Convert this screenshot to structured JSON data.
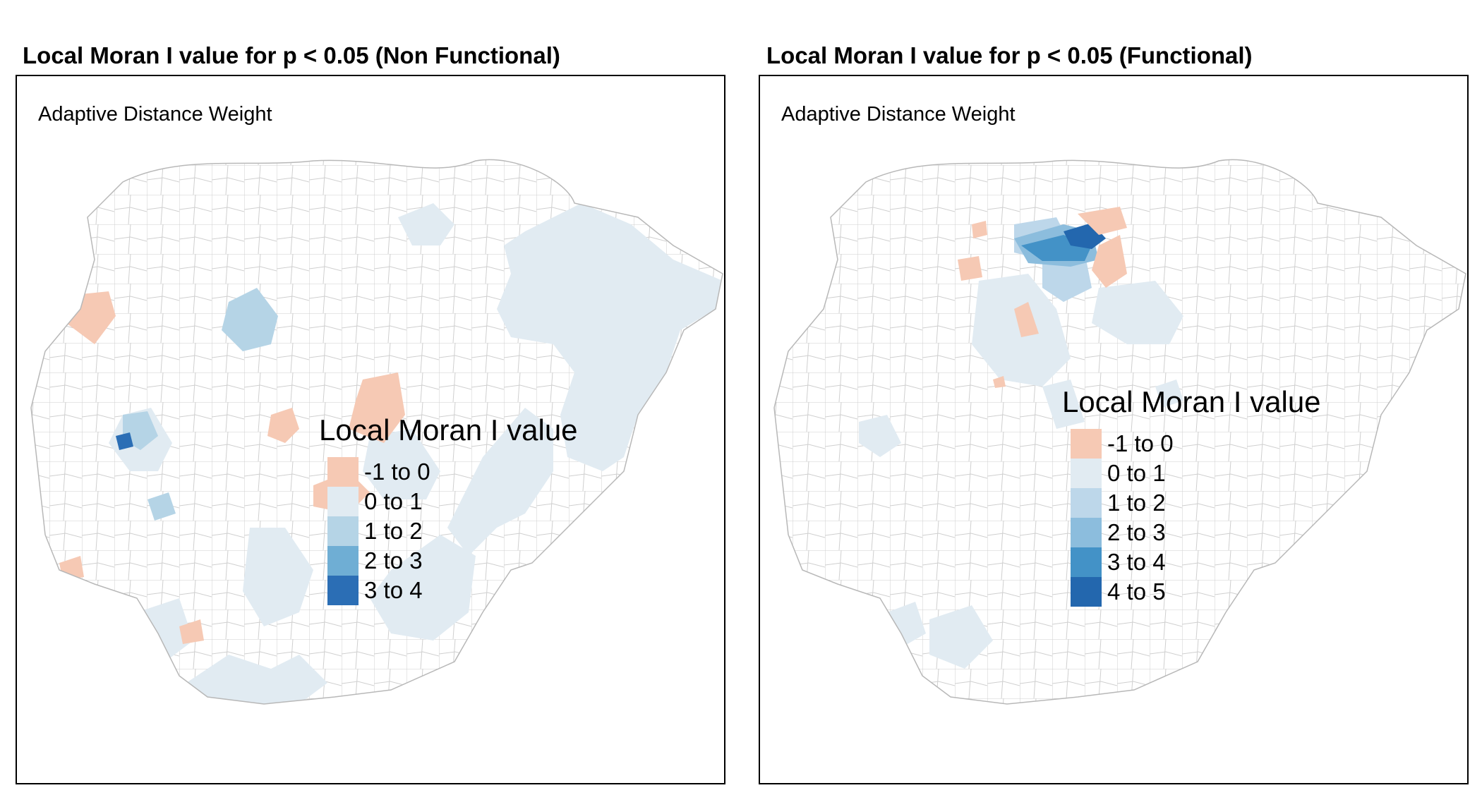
{
  "panels": [
    {
      "title": "Local Moran I value for p < 0.05 (Non Functional)",
      "subtitle": "Adaptive Distance Weight",
      "legend": {
        "title": "Local Moran I value",
        "items": [
          {
            "label": "-1 to 0",
            "color": "#f6c9b4"
          },
          {
            "label": "0 to 1",
            "color": "#e1ebf2"
          },
          {
            "label": "1 to 2",
            "color": "#b5d4e6"
          },
          {
            "label": "2 to 3",
            "color": "#6faed4"
          },
          {
            "label": "3 to 4",
            "color": "#2b6eb5"
          }
        ]
      }
    },
    {
      "title": "Local Moran I value for p < 0.05 (Functional)",
      "subtitle": "Adaptive Distance Weight",
      "legend": {
        "title": "Local Moran I value",
        "items": [
          {
            "label": "-1 to 0",
            "color": "#f6c9b4"
          },
          {
            "label": "0 to 1",
            "color": "#e1ebf2"
          },
          {
            "label": "1 to 2",
            "color": "#bdd7ea"
          },
          {
            "label": "2 to 3",
            "color": "#8cbddd"
          },
          {
            "label": "3 to 4",
            "color": "#4392c7"
          },
          {
            "label": "4 to 5",
            "color": "#2367ae"
          }
        ]
      }
    }
  ]
}
